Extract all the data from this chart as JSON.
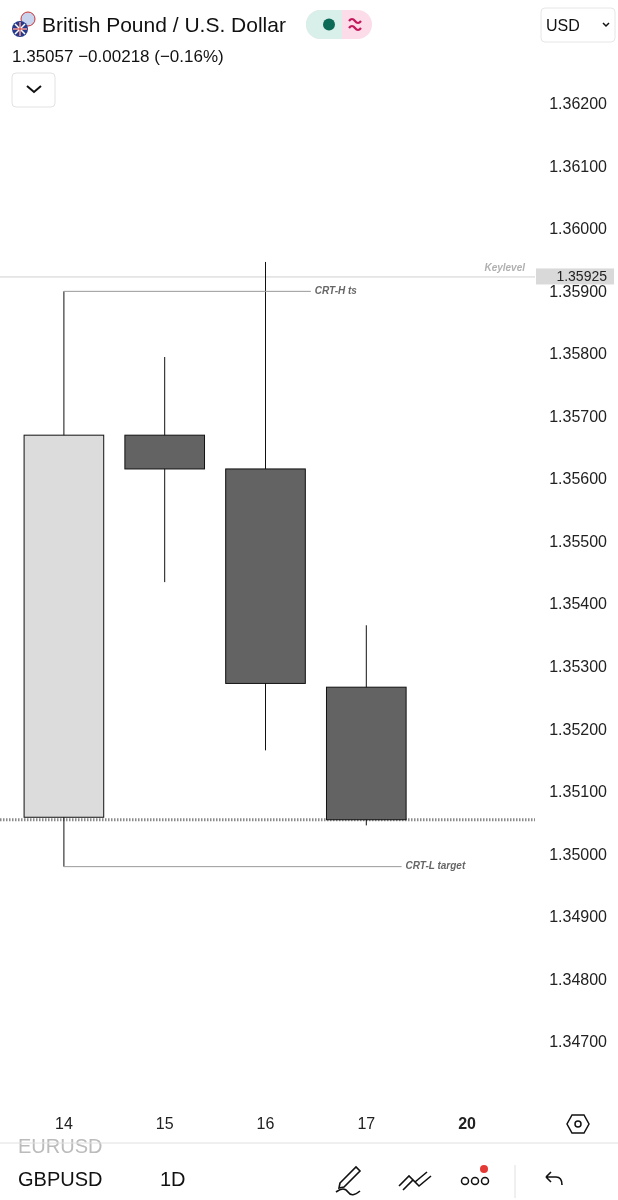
{
  "chart_data": {
    "type": "candlestick",
    "title": "British Pound / U.S. Dollar",
    "subtitle": "1.35057  −0.00218 (−0.16%)",
    "categories": [
      "14",
      "15",
      "16",
      "17",
      "20"
    ],
    "ohlc": [
      [
        1.35061,
        1.35902,
        1.34982,
        1.35672
      ],
      [
        1.35672,
        1.35797,
        1.35437,
        1.35618
      ],
      [
        1.35618,
        1.35949,
        1.35168,
        1.35275
      ],
      [
        1.35269,
        1.35368,
        1.35048,
        1.35057
      ],
      null
    ],
    "colors": [
      "#dcdcdc",
      "#636363",
      "#636363",
      "#636363",
      null
    ],
    "ylim": [
      1.347,
      1.362
    ],
    "yticks": [
      {
        "value": 1.347,
        "label": "1.34700"
      },
      {
        "value": 1.348,
        "label": "1.34800"
      },
      {
        "value": 1.349,
        "label": "1.34900"
      },
      {
        "value": 1.35,
        "label": "1.35000"
      },
      {
        "value": 1.351,
        "label": "1.35100"
      },
      {
        "value": 1.352,
        "label": "1.35200"
      },
      {
        "value": 1.353,
        "label": "1.35300"
      },
      {
        "value": 1.354,
        "label": "1.35400"
      },
      {
        "value": 1.355,
        "label": "1.35500"
      },
      {
        "value": 1.356,
        "label": "1.35600"
      },
      {
        "value": 1.357,
        "label": "1.35700"
      },
      {
        "value": 1.358,
        "label": "1.35800"
      },
      {
        "value": 1.359,
        "label": "1.35900"
      },
      {
        "value": 1.35925,
        "label": "1.35925"
      },
      {
        "value": 1.36,
        "label": "1.36000"
      },
      {
        "value": 1.361,
        "label": "1.36100"
      },
      {
        "value": 1.362,
        "label": "1.36200"
      }
    ],
    "grid": false,
    "ref_lines": [
      {
        "axis": "y",
        "value": 1.35925,
        "label": "Keylevel",
        "color": "#d0d0d0"
      },
      {
        "axis": "y",
        "value": 1.35057,
        "color": "#8a8a8a",
        "line_style": "dotted"
      }
    ],
    "annotations": [
      {
        "text": "CRT-H ts",
        "x": "14",
        "y": 1.35902
      },
      {
        "text": "CRT-L target",
        "x": "14",
        "y": 1.34982
      },
      "USD",
      "EURUSD",
      "GBPUSD",
      "1D"
    ]
  }
}
